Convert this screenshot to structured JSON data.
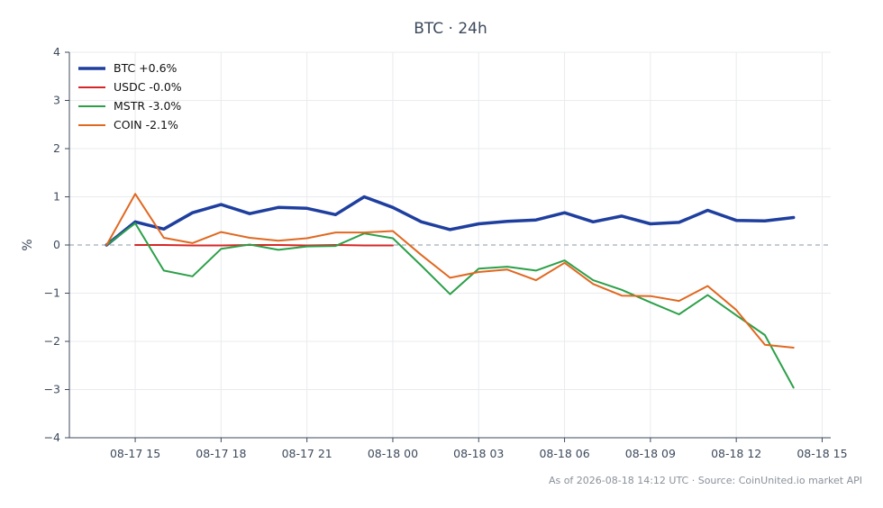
{
  "chart_data": {
    "type": "line",
    "title": "BTC · 24h",
    "xlabel": "",
    "ylabel": "%",
    "ylim": [
      -4,
      4
    ],
    "yticks": [
      "−4",
      "−3",
      "−2",
      "−1",
      "0",
      "1",
      "2",
      "3",
      "4"
    ],
    "xtick_labels": [
      "08-17 15",
      "08-17 18",
      "08-17 21",
      "08-18 00",
      "08-18 03",
      "08-18 06",
      "08-18 09",
      "08-18 12",
      "08-18 15"
    ],
    "xlim": [
      "08-17 12:42",
      "08-18 15:18"
    ],
    "grid": true,
    "legend_position": "top-left",
    "zero_line": true,
    "series": [
      {
        "name": "BTC +0.6%",
        "color": "#1f3f9f",
        "width": 3.5,
        "x": [
          "08-17 14:00",
          "08-17 15:00",
          "08-17 16:00",
          "08-17 17:00",
          "08-17 18:00",
          "08-17 19:00",
          "08-17 20:00",
          "08-17 21:00",
          "08-17 22:00",
          "08-17 23:00",
          "08-18 00:00",
          "08-18 01:00",
          "08-18 02:00",
          "08-18 03:00",
          "08-18 04:00",
          "08-18 05:00",
          "08-18 06:00",
          "08-18 07:00",
          "08-18 08:00",
          "08-18 09:00",
          "08-18 10:00",
          "08-18 11:00",
          "08-18 12:00",
          "08-18 13:00",
          "08-18 14:00"
        ],
        "values": [
          0.0,
          0.48,
          0.33,
          0.67,
          0.84,
          0.65,
          0.78,
          0.76,
          0.63,
          1.0,
          0.78,
          0.48,
          0.32,
          0.44,
          0.49,
          0.52,
          0.67,
          0.48,
          0.6,
          0.44,
          0.47,
          0.72,
          0.51,
          0.5,
          0.57
        ]
      },
      {
        "name": "USDC -0.0%",
        "color": "#d62728",
        "width": 2,
        "x": [
          "08-17 15:00",
          "08-17 16:00",
          "08-17 17:00",
          "08-17 18:00",
          "08-17 19:00",
          "08-17 20:00",
          "08-17 21:00",
          "08-17 22:00",
          "08-17 23:00",
          "08-18 00:00"
        ],
        "values": [
          0.0,
          0.0,
          -0.01,
          -0.01,
          0.0,
          0.0,
          -0.01,
          0.0,
          -0.01,
          -0.01
        ]
      },
      {
        "name": "MSTR -3.0%",
        "color": "#2ca048",
        "width": 2,
        "x": [
          "08-17 14:00",
          "08-17 15:00",
          "08-17 16:00",
          "08-17 17:00",
          "08-17 18:00",
          "08-17 19:00",
          "08-17 20:00",
          "08-17 21:00",
          "08-17 22:00",
          "08-17 23:00",
          "08-18 00:00",
          "08-18 01:00",
          "08-18 02:00",
          "08-18 03:00",
          "08-18 04:00",
          "08-18 05:00",
          "08-18 06:00",
          "08-18 07:00",
          "08-18 08:00",
          "08-18 09:00",
          "08-18 10:00",
          "08-18 11:00",
          "08-18 12:00",
          "08-18 13:00",
          "08-18 14:00"
        ],
        "values": [
          0.0,
          0.45,
          -0.53,
          -0.65,
          -0.08,
          0.01,
          -0.1,
          -0.03,
          -0.02,
          0.24,
          0.14,
          -0.43,
          -1.02,
          -0.49,
          -0.45,
          -0.53,
          -0.32,
          -0.73,
          -0.93,
          -1.19,
          -1.44,
          -1.04,
          -1.46,
          -1.87,
          -2.96
        ]
      },
      {
        "name": "COIN -2.1%",
        "color": "#e06820",
        "width": 2,
        "x": [
          "08-17 14:00",
          "08-17 15:00",
          "08-17 16:00",
          "08-17 17:00",
          "08-17 18:00",
          "08-17 19:00",
          "08-17 20:00",
          "08-17 21:00",
          "08-17 22:00",
          "08-17 23:00",
          "08-18 00:00",
          "08-18 01:00",
          "08-18 02:00",
          "08-18 03:00",
          "08-18 04:00",
          "08-18 05:00",
          "08-18 06:00",
          "08-18 07:00",
          "08-18 08:00",
          "08-18 09:00",
          "08-18 10:00",
          "08-18 11:00",
          "08-18 12:00",
          "08-18 13:00",
          "08-18 14:00"
        ],
        "values": [
          0.0,
          1.06,
          0.15,
          0.04,
          0.27,
          0.15,
          0.09,
          0.14,
          0.26,
          0.26,
          0.29,
          -0.21,
          -0.68,
          -0.56,
          -0.51,
          -0.73,
          -0.37,
          -0.81,
          -1.05,
          -1.06,
          -1.16,
          -0.85,
          -1.35,
          -2.07,
          -2.13
        ]
      }
    ]
  },
  "footer": "As of 2026-08-18 14:12 UTC · Source: CoinUnited.io market API"
}
